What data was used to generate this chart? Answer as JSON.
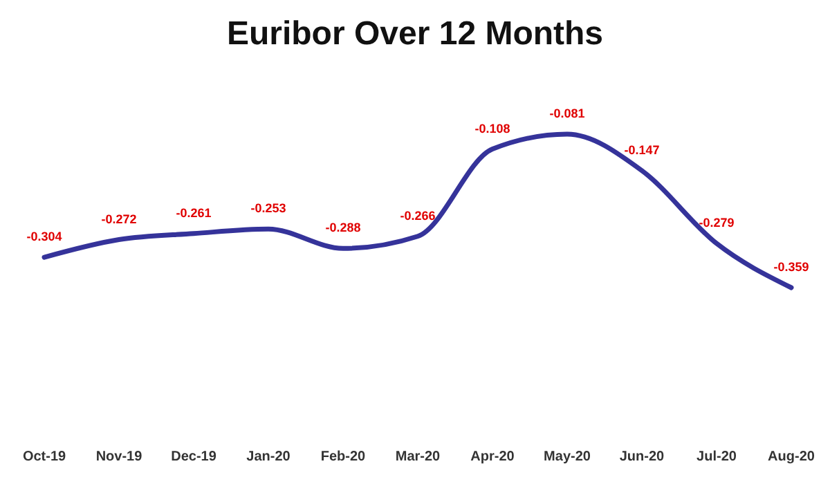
{
  "chart_data": {
    "type": "line",
    "title": "Euribor Over 12 Months",
    "categories": [
      "Oct-19",
      "Nov-19",
      "Dec-19",
      "Jan-20",
      "Feb-20",
      "Mar-20",
      "Apr-20",
      "May-20",
      "Jun-20",
      "Jul-20",
      "Aug-20"
    ],
    "series": [
      {
        "color": "#35339a",
        "values": [
          -0.304,
          -0.272,
          -0.261,
          -0.253,
          -0.288,
          -0.266,
          -0.108,
          -0.081,
          -0.147,
          -0.279,
          -0.359
        ]
      }
    ],
    "data_labels": true,
    "marker": "none",
    "line_style": "solid"
  }
}
